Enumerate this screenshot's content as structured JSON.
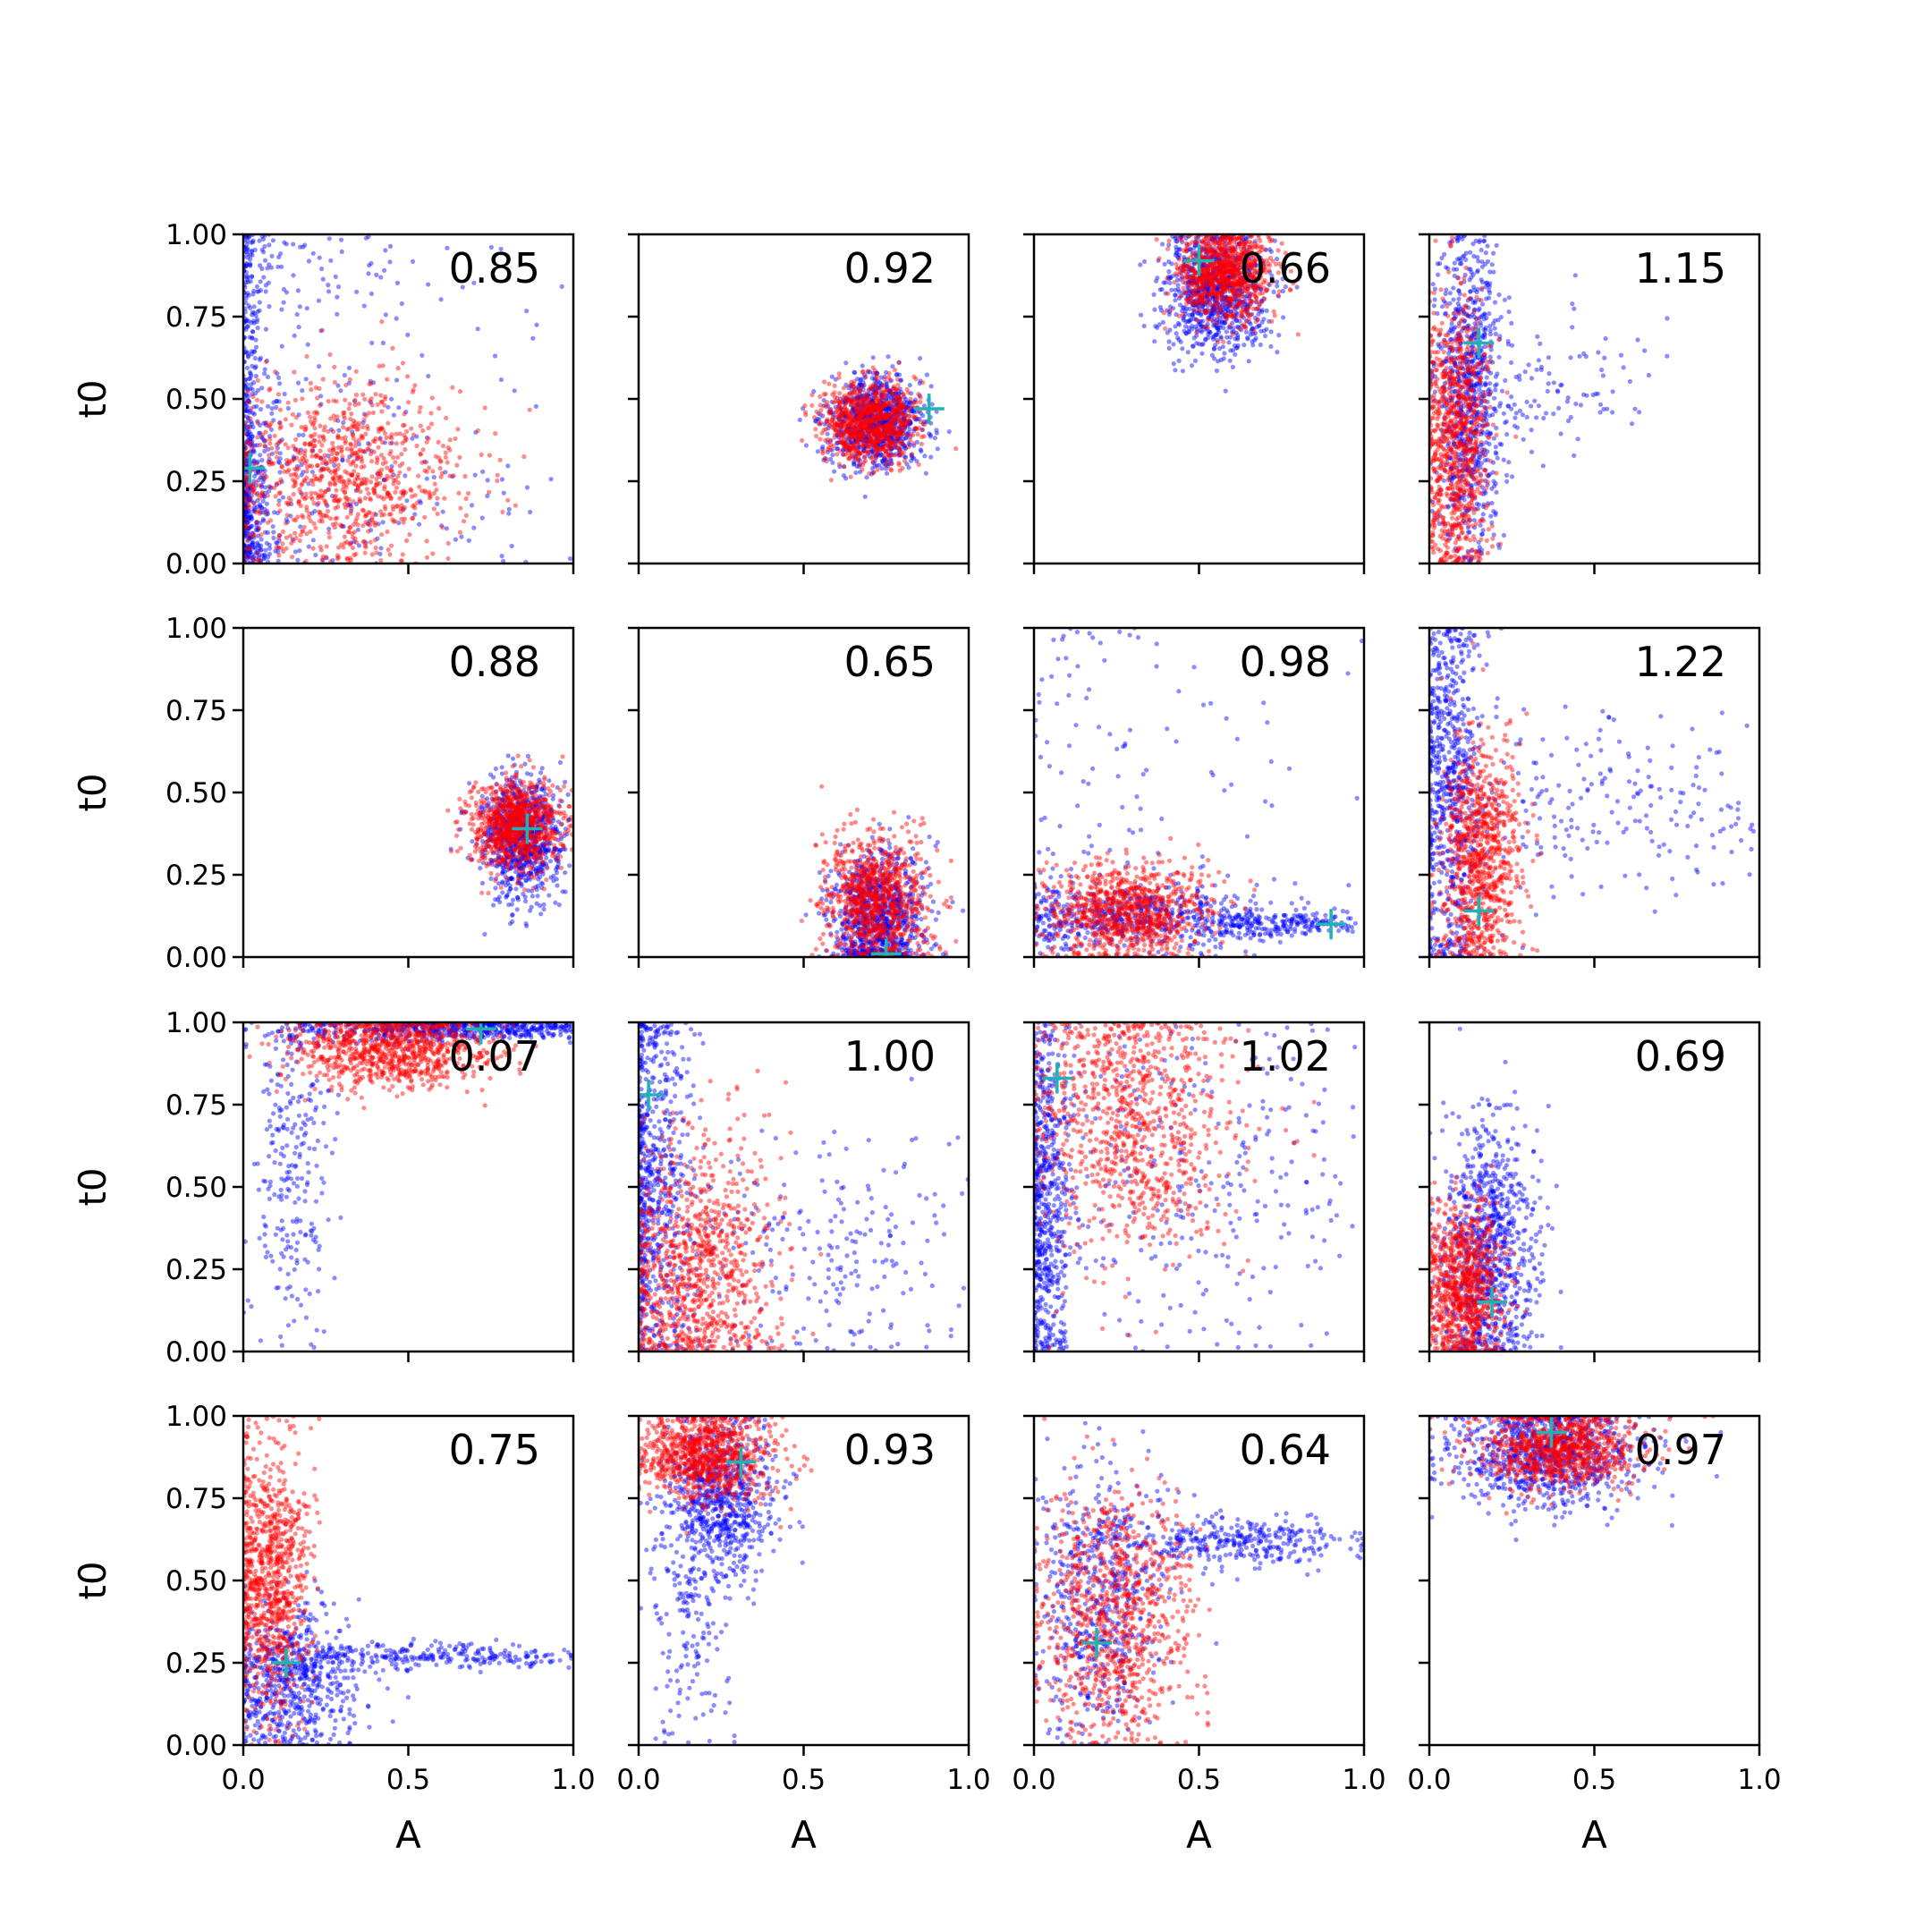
{
  "figure": {
    "colors": {
      "series_a": "#0000ff",
      "series_b": "#ff0000",
      "marker": "#1fb3b3",
      "axis": "#000000"
    }
  },
  "chart_data": {
    "type": "scatter",
    "grid": false,
    "rows": 4,
    "cols": 4,
    "xlim": [
      0,
      1
    ],
    "ylim": [
      0,
      1
    ],
    "xlabel": "A",
    "ylabel": "t0",
    "x_ticks": [
      "0.0",
      "0.5",
      "1.0"
    ],
    "y_ticks": [
      "0.00",
      "0.25",
      "0.50",
      "0.75",
      "1.00"
    ],
    "points_per_series": 900,
    "panels": [
      {
        "label": "0.85",
        "marker": [
          0.02,
          0.29
        ],
        "blue": [
          {
            "x": [
              0.0,
              0.06
            ],
            "y": [
              0.0,
              1.0
            ],
            "w": 0.6
          },
          {
            "x": [
              0.0,
              1.0
            ],
            "y": [
              0.0,
              1.0
            ],
            "w": 0.4
          }
        ],
        "red": [
          {
            "x": [
              0.3,
              0.18
            ],
            "y": [
              0.27,
              0.14
            ],
            "w": 1.0
          }
        ]
      },
      {
        "label": "0.92",
        "marker": [
          0.88,
          0.47
        ],
        "blue": [
          {
            "x": [
              0.72,
              0.07
            ],
            "y": [
              0.43,
              0.07
            ],
            "w": 1.0
          }
        ],
        "red": [
          {
            "x": [
              0.7,
              0.07
            ],
            "y": [
              0.43,
              0.06
            ],
            "w": 1.0
          }
        ]
      },
      {
        "label": "0.66",
        "marker": [
          0.5,
          0.92
        ],
        "blue": [
          {
            "x": [
              0.55,
              0.08
            ],
            "y": [
              0.83,
              0.09
            ],
            "w": 1.0
          }
        ],
        "red": [
          {
            "x": [
              0.58,
              0.07
            ],
            "y": [
              0.88,
              0.07
            ],
            "w": 1.0
          }
        ]
      },
      {
        "label": "1.15",
        "marker": [
          0.15,
          0.67
        ],
        "blue": [
          {
            "x": [
              0.12,
              0.05
            ],
            "y": [
              0.5,
              0.25
            ],
            "w": 0.85
          },
          {
            "x": [
              0.3,
              0.2
            ],
            "y": [
              0.55,
              0.1
            ],
            "w": 0.15
          }
        ],
        "red": [
          {
            "x": [
              0.08,
              0.05
            ],
            "y": [
              0.38,
              0.2
            ],
            "w": 1.0
          }
        ]
      },
      {
        "label": "0.88",
        "marker": [
          0.86,
          0.39
        ],
        "blue": [
          {
            "x": [
              0.84,
              0.06
            ],
            "y": [
              0.36,
              0.09
            ],
            "w": 1.0
          }
        ],
        "red": [
          {
            "x": [
              0.82,
              0.07
            ],
            "y": [
              0.4,
              0.07
            ],
            "w": 1.0
          }
        ]
      },
      {
        "label": "0.65",
        "marker": [
          0.75,
          0.01
        ],
        "blue": [
          {
            "x": [
              0.72,
              0.07
            ],
            "y": [
              0.12,
              0.1
            ],
            "w": 1.0
          }
        ],
        "red": [
          {
            "x": [
              0.72,
              0.08
            ],
            "y": [
              0.17,
              0.1
            ],
            "w": 1.0
          }
        ]
      },
      {
        "label": "0.98",
        "marker": [
          0.9,
          0.1
        ],
        "blue": [
          {
            "x": [
              0.3,
              0.2
            ],
            "y": [
              0.12,
              0.05
            ],
            "w": 0.6
          },
          {
            "x": [
              0.75,
              0.15
            ],
            "y": [
              0.1,
              0.02
            ],
            "w": 0.25
          },
          {
            "x": [
              0.3,
              0.3
            ],
            "y": [
              0.5,
              0.3
            ],
            "w": 0.15
          }
        ],
        "red": [
          {
            "x": [
              0.28,
              0.12
            ],
            "y": [
              0.14,
              0.07
            ],
            "w": 1.0
          }
        ]
      },
      {
        "label": "1.22",
        "marker": [
          0.15,
          0.14
        ],
        "blue": [
          {
            "x": [
              0.06,
              0.05
            ],
            "y": [
              0.5,
              0.3
            ],
            "w": 0.75
          },
          {
            "x": [
              0.5,
              0.3
            ],
            "y": [
              0.45,
              0.15
            ],
            "w": 0.25
          }
        ],
        "red": [
          {
            "x": [
              0.15,
              0.06
            ],
            "y": [
              0.3,
              0.18
            ],
            "w": 1.0
          }
        ]
      },
      {
        "label": "0.07",
        "marker": [
          0.72,
          0.98
        ],
        "blue": [
          {
            "x": [
              0.7,
              0.25
            ],
            "y": [
              0.98,
              0.02
            ],
            "w": 0.7
          },
          {
            "x": [
              0.15,
              0.06
            ],
            "y": [
              0.6,
              0.3
            ],
            "w": 0.3
          }
        ],
        "red": [
          {
            "x": [
              0.45,
              0.15
            ],
            "y": [
              0.92,
              0.06
            ],
            "w": 1.0
          }
        ]
      },
      {
        "label": "1.00",
        "marker": [
          0.03,
          0.78
        ],
        "blue": [
          {
            "x": [
              0.04,
              0.06
            ],
            "y": [
              0.5,
              0.3
            ],
            "w": 0.7
          },
          {
            "x": [
              0.5,
              0.3
            ],
            "y": [
              0.3,
              0.2
            ],
            "w": 0.3
          }
        ],
        "red": [
          {
            "x": [
              0.18,
              0.12
            ],
            "y": [
              0.25,
              0.2
            ],
            "w": 1.0
          }
        ]
      },
      {
        "label": "1.02",
        "marker": [
          0.07,
          0.83
        ],
        "blue": [
          {
            "x": [
              0.04,
              0.04
            ],
            "y": [
              0.45,
              0.3
            ],
            "w": 0.65
          },
          {
            "x": [
              0.5,
              0.3
            ],
            "y": [
              0.5,
              0.3
            ],
            "w": 0.35
          }
        ],
        "red": [
          {
            "x": [
              0.3,
              0.15
            ],
            "y": [
              0.7,
              0.2
            ],
            "w": 1.0
          }
        ]
      },
      {
        "label": "0.69",
        "marker": [
          0.19,
          0.15
        ],
        "blue": [
          {
            "x": [
              0.18,
              0.07
            ],
            "y": [
              0.3,
              0.2
            ],
            "w": 1.0
          }
        ],
        "red": [
          {
            "x": [
              0.1,
              0.06
            ],
            "y": [
              0.2,
              0.12
            ],
            "w": 1.0
          }
        ]
      },
      {
        "label": "0.75",
        "marker": [
          0.13,
          0.25
        ],
        "blue": [
          {
            "x": [
              0.15,
              0.1
            ],
            "y": [
              0.2,
              0.12
            ],
            "w": 0.7
          },
          {
            "x": [
              0.6,
              0.25
            ],
            "y": [
              0.27,
              0.02
            ],
            "w": 0.3
          }
        ],
        "red": [
          {
            "x": [
              0.08,
              0.06
            ],
            "y": [
              0.5,
              0.2
            ],
            "w": 1.0
          }
        ]
      },
      {
        "label": "0.93",
        "marker": [
          0.31,
          0.86
        ],
        "blue": [
          {
            "x": [
              0.25,
              0.08
            ],
            "y": [
              0.75,
              0.12
            ],
            "w": 0.8
          },
          {
            "x": [
              0.15,
              0.06
            ],
            "y": [
              0.4,
              0.2
            ],
            "w": 0.2
          }
        ],
        "red": [
          {
            "x": [
              0.2,
              0.1
            ],
            "y": [
              0.88,
              0.07
            ],
            "w": 1.0
          }
        ]
      },
      {
        "label": "0.64",
        "marker": [
          0.19,
          0.31
        ],
        "blue": [
          {
            "x": [
              0.2,
              0.1
            ],
            "y": [
              0.45,
              0.2
            ],
            "w": 0.6
          },
          {
            "x": [
              0.6,
              0.2
            ],
            "y": [
              0.62,
              0.04
            ],
            "w": 0.4
          }
        ],
        "red": [
          {
            "x": [
              0.25,
              0.12
            ],
            "y": [
              0.4,
              0.2
            ],
            "w": 1.0
          }
        ]
      },
      {
        "label": "0.97",
        "marker": [
          0.37,
          0.95
        ],
        "blue": [
          {
            "x": [
              0.35,
              0.15
            ],
            "y": [
              0.88,
              0.08
            ],
            "w": 1.0
          }
        ],
        "red": [
          {
            "x": [
              0.4,
              0.12
            ],
            "y": [
              0.9,
              0.06
            ],
            "w": 1.0
          }
        ]
      }
    ]
  }
}
